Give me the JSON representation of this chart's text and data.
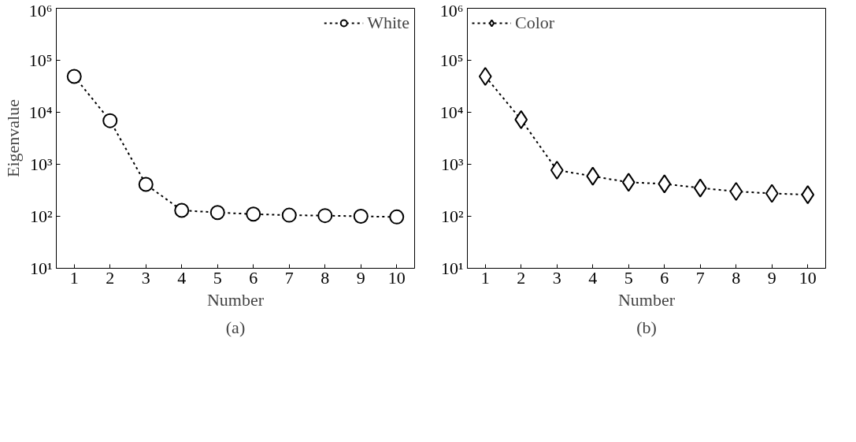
{
  "chart_data": [
    {
      "type": "line",
      "xlabel": "Number",
      "ylabel": "Eigenvalue",
      "annotations": [
        "(a)"
      ],
      "x": [
        1,
        2,
        3,
        4,
        5,
        6,
        7,
        8,
        9,
        10
      ],
      "log": true,
      "xlim": [
        0.5,
        10.5
      ],
      "xticks": [
        1,
        2,
        3,
        4,
        5,
        6,
        7,
        8,
        9,
        10
      ],
      "ylim": [
        10,
        1000000
      ],
      "yticks": [
        {
          "value": 10,
          "label": "10¹"
        },
        {
          "value": 100,
          "label": "10²"
        },
        {
          "value": 1000,
          "label": "10³"
        },
        {
          "value": 10000,
          "label": "10⁴"
        },
        {
          "value": 100000,
          "label": "10⁵"
        },
        {
          "value": 1000000,
          "label": "10⁶"
        }
      ],
      "legend": "top right",
      "line_style": "dashed",
      "series": [
        {
          "name": "White",
          "color": "#000000",
          "marker": "circle",
          "values": [
            49000,
            6900,
            410,
            130,
            118,
            110,
            105,
            103,
            100,
            97
          ]
        }
      ]
    },
    {
      "type": "line",
      "xlabel": "Number",
      "annotations": [
        "(b)"
      ],
      "x": [
        1,
        2,
        3,
        4,
        5,
        6,
        7,
        8,
        9,
        10
      ],
      "log": true,
      "xlim": [
        0.5,
        10.5
      ],
      "xticks": [
        1,
        2,
        3,
        4,
        5,
        6,
        7,
        8,
        9,
        10
      ],
      "ylim": [
        10,
        1000000
      ],
      "yticks": [
        {
          "value": 10,
          "label": "10¹"
        },
        {
          "value": 100,
          "label": "10²"
        },
        {
          "value": 1000,
          "label": "10³"
        },
        {
          "value": 10000,
          "label": "10⁴"
        },
        {
          "value": 100000,
          "label": "10⁵"
        },
        {
          "value": 1000000,
          "label": "10⁶"
        }
      ],
      "legend": "top left",
      "line_style": "dashed",
      "series": [
        {
          "name": "Color",
          "color": "#000000",
          "marker": "diamond",
          "values": [
            49000,
            7200,
            770,
            590,
            450,
            420,
            350,
            300,
            275,
            260
          ]
        }
      ]
    }
  ]
}
